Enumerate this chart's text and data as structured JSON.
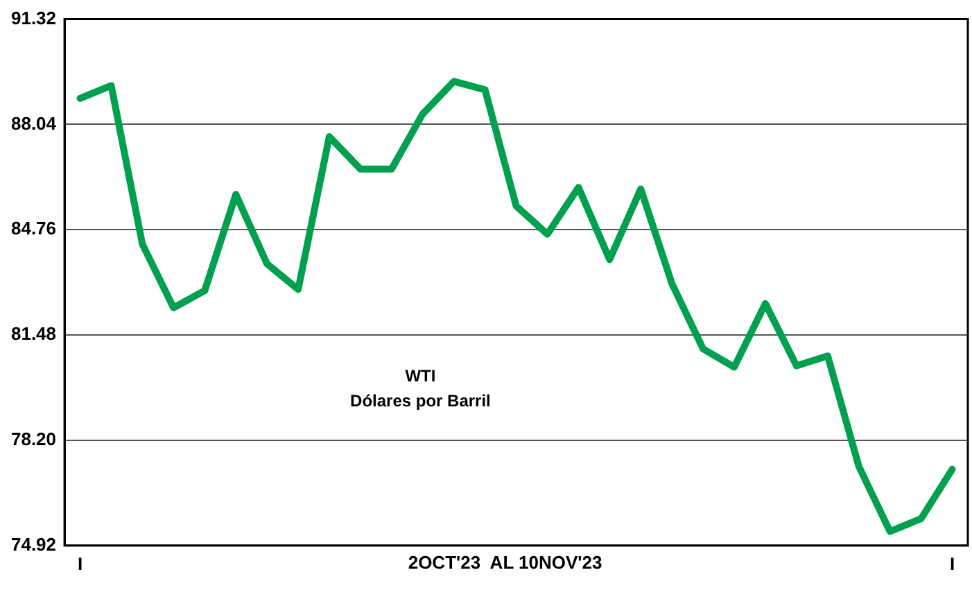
{
  "chart_data": {
    "type": "line",
    "xlabel": "2OCT'23  AL 10NOV'23",
    "annotations": [
      "WTI",
      "Dólares por Barril"
    ],
    "categories": [
      "I",
      null,
      null,
      null,
      null,
      null,
      null,
      null,
      null,
      null,
      null,
      null,
      null,
      null,
      null,
      null,
      null,
      null,
      null,
      null,
      null,
      null,
      null,
      null,
      null,
      null,
      null,
      null,
      "I"
    ],
    "series": [
      {
        "color": "#00a04e",
        "values": [
          88.85,
          89.25,
          84.31,
          82.33,
          82.86,
          85.86,
          83.7,
          82.9,
          87.66,
          86.65,
          86.65,
          88.37,
          89.38,
          89.12,
          85.5,
          84.62,
          86.08,
          83.83,
          86.03,
          83.08,
          81.05,
          80.48,
          82.46,
          80.52,
          80.83,
          77.39,
          75.36,
          75.76,
          77.3
        ]
      }
    ],
    "ylim": [
      74.92,
      91.32
    ],
    "yticks": [
      74.92,
      {
        "value": 78.2,
        "label": "78.20"
      },
      81.48,
      84.76,
      88.04,
      91.32
    ],
    "grid": "y",
    "legend": false,
    "marker": "none",
    "line_style": "solid"
  }
}
